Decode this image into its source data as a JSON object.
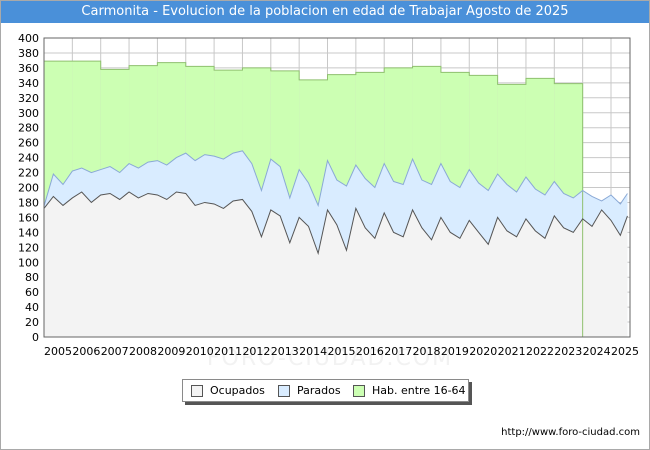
{
  "title": "Carmonita - Evolucion de la poblacion en edad de Trabajar Agosto de 2025",
  "watermark": "FORO-CIUDAD.COM",
  "source_url": "http://www.foro-ciudad.com",
  "colors": {
    "title_bg": "#4a90d9",
    "hab": "#ccffb3",
    "parados": "#d9ecff",
    "ocupados": "#f3f3f3",
    "grid": "#c8c8c8"
  },
  "chart_data": {
    "type": "area",
    "title": "Carmonita - Evolucion de la poblacion en edad de Trabajar Agosto de 2025",
    "xlabel": "",
    "ylabel": "",
    "ylim": [
      0,
      400
    ],
    "y_ticks": [
      0,
      20,
      40,
      60,
      80,
      100,
      120,
      140,
      160,
      180,
      200,
      220,
      240,
      260,
      280,
      300,
      320,
      340,
      360,
      380,
      400
    ],
    "xlim": [
      2005,
      2025.67
    ],
    "x_ticks": [
      "2005",
      "2006",
      "2007",
      "2008",
      "2009",
      "2010",
      "2011",
      "2012",
      "2013",
      "2014",
      "2015",
      "2016",
      "2017",
      "2018",
      "2019",
      "2020",
      "2021",
      "2022",
      "2023",
      "2024",
      "2025"
    ],
    "grid": true,
    "legend": [
      "Ocupados",
      "Parados",
      "Hab. entre 16-64"
    ],
    "legend_position": "bottom",
    "series": [
      {
        "name": "Hab. entre 16-64",
        "step": true,
        "x": [
          2005,
          2006,
          2007,
          2008,
          2009,
          2010,
          2011,
          2012,
          2013,
          2014,
          2015,
          2016,
          2017,
          2018,
          2019,
          2020,
          2021,
          2022,
          2023
        ],
        "values": [
          369,
          369,
          358,
          363,
          367,
          362,
          357,
          360,
          356,
          344,
          351,
          354,
          360,
          362,
          354,
          350,
          338,
          346,
          339
        ]
      },
      {
        "name": "Parados",
        "x": [
          2005.0,
          2005.33,
          2005.67,
          2006.0,
          2006.33,
          2006.67,
          2007.0,
          2007.33,
          2007.67,
          2008.0,
          2008.33,
          2008.67,
          2009.0,
          2009.33,
          2009.67,
          2010.0,
          2010.33,
          2010.67,
          2011.0,
          2011.33,
          2011.67,
          2012.0,
          2012.33,
          2012.67,
          2013.0,
          2013.33,
          2013.67,
          2014.0,
          2014.33,
          2014.67,
          2015.0,
          2015.33,
          2015.67,
          2016.0,
          2016.33,
          2016.67,
          2017.0,
          2017.33,
          2017.67,
          2018.0,
          2018.33,
          2018.67,
          2019.0,
          2019.33,
          2019.67,
          2020.0,
          2020.33,
          2020.67,
          2021.0,
          2021.33,
          2021.67,
          2022.0,
          2022.33,
          2022.67,
          2023.0,
          2023.33,
          2023.67,
          2024.0,
          2024.33,
          2024.67,
          2025.0,
          2025.33,
          2025.58
        ],
        "values": [
          175,
          218,
          204,
          222,
          226,
          220,
          224,
          228,
          220,
          232,
          226,
          234,
          236,
          230,
          240,
          246,
          236,
          244,
          242,
          238,
          246,
          249,
          232,
          196,
          238,
          228,
          186,
          224,
          206,
          176,
          236,
          210,
          202,
          230,
          212,
          200,
          232,
          208,
          204,
          238,
          210,
          204,
          232,
          208,
          200,
          224,
          206,
          196,
          218,
          204,
          194,
          214,
          198,
          190,
          208,
          192,
          186,
          196,
          188,
          182,
          190,
          178,
          192
        ]
      },
      {
        "name": "Ocupados",
        "x": [
          2005.0,
          2005.33,
          2005.67,
          2006.0,
          2006.33,
          2006.67,
          2007.0,
          2007.33,
          2007.67,
          2008.0,
          2008.33,
          2008.67,
          2009.0,
          2009.33,
          2009.67,
          2010.0,
          2010.33,
          2010.67,
          2011.0,
          2011.33,
          2011.67,
          2012.0,
          2012.33,
          2012.67,
          2013.0,
          2013.33,
          2013.67,
          2014.0,
          2014.33,
          2014.67,
          2015.0,
          2015.33,
          2015.67,
          2016.0,
          2016.33,
          2016.67,
          2017.0,
          2017.33,
          2017.67,
          2018.0,
          2018.33,
          2018.67,
          2019.0,
          2019.33,
          2019.67,
          2020.0,
          2020.33,
          2020.67,
          2021.0,
          2021.33,
          2021.67,
          2022.0,
          2022.33,
          2022.67,
          2023.0,
          2023.33,
          2023.67,
          2024.0,
          2024.33,
          2024.67,
          2025.0,
          2025.33,
          2025.58
        ],
        "values": [
          172,
          188,
          176,
          186,
          194,
          180,
          190,
          192,
          184,
          194,
          186,
          192,
          190,
          184,
          194,
          192,
          176,
          180,
          178,
          172,
          182,
          184,
          168,
          134,
          170,
          162,
          126,
          160,
          148,
          112,
          170,
          150,
          116,
          172,
          146,
          132,
          166,
          140,
          134,
          170,
          146,
          130,
          160,
          140,
          132,
          156,
          140,
          124,
          160,
          142,
          134,
          158,
          142,
          132,
          162,
          146,
          140,
          158,
          148,
          170,
          156,
          136,
          162
        ]
      }
    ]
  }
}
